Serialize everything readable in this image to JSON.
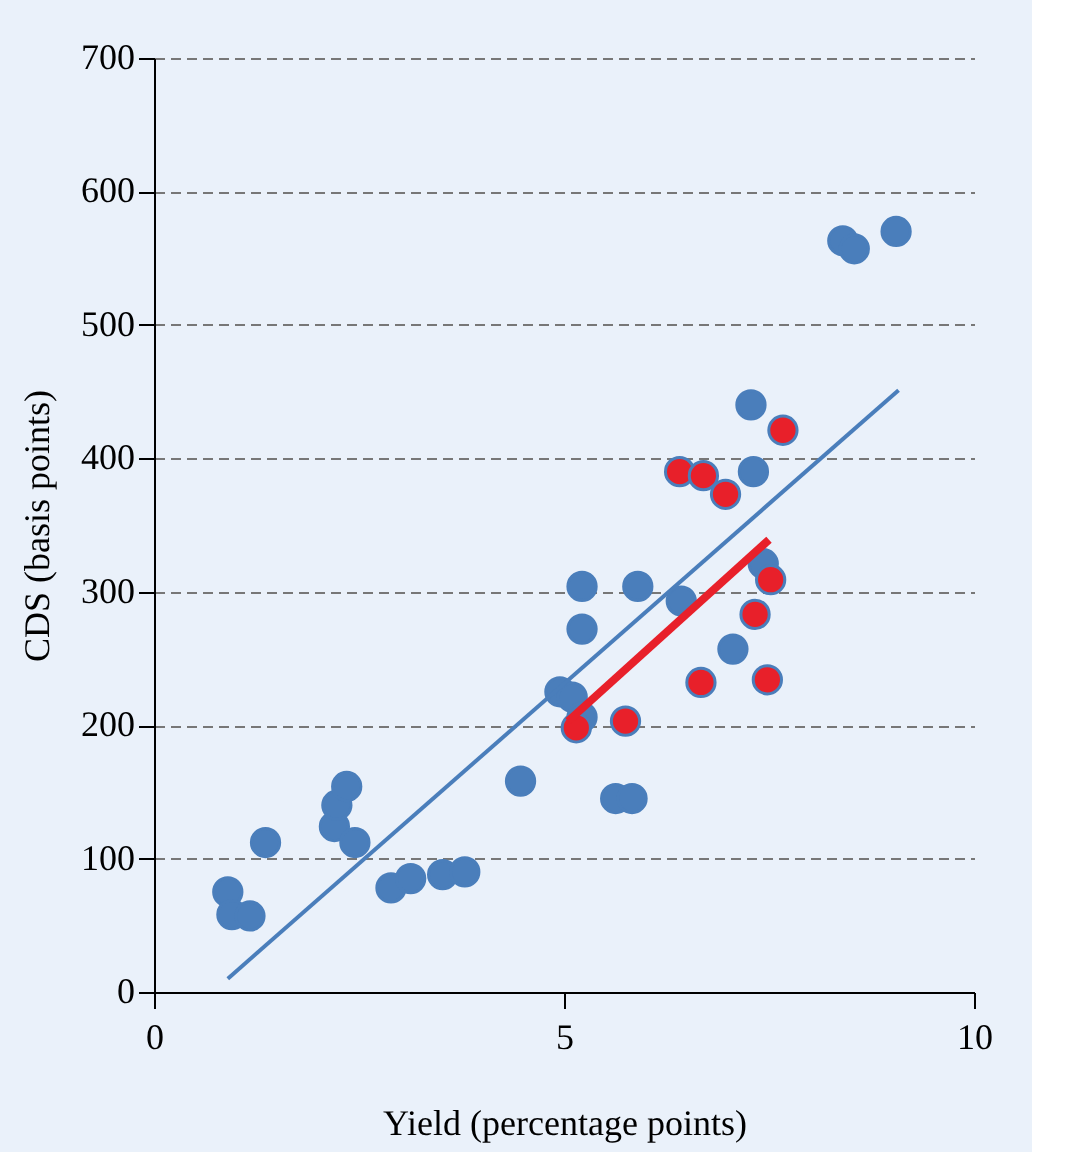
{
  "chart_data": {
    "type": "scatter",
    "xlabel": "Yield (percentage points)",
    "ylabel": "CDS (basis points)",
    "xlim": [
      0,
      10
    ],
    "xticks": [
      0,
      5,
      10
    ],
    "ylim": [
      0,
      700
    ],
    "yticks": [
      0,
      100,
      200,
      300,
      400,
      500,
      600,
      700
    ],
    "grid": "y",
    "series": [
      {
        "color": "#4a7ebb",
        "marker": "circle",
        "x": [
          0.9,
          0.95,
          1.17,
          1.36,
          2.2,
          2.23,
          2.35,
          2.45,
          2.89,
          3.13,
          3.52,
          3.79,
          4.47,
          4.95,
          5.1,
          5.22,
          5.22,
          5.22,
          5.63,
          5.83,
          5.9,
          6.43,
          7.06,
          7.28,
          7.31,
          7.43,
          8.4,
          8.54,
          9.05
        ],
        "values": [
          75,
          58,
          57,
          112,
          124,
          140,
          154,
          112,
          78,
          85,
          88,
          90,
          158,
          225,
          221,
          206,
          272,
          304,
          145,
          145,
          304,
          293,
          257,
          440,
          390,
          321,
          563,
          557,
          570
        ]
      },
      {
        "color": "#e8202a",
        "marker": "circle",
        "x": [
          5.15,
          5.75,
          6.41,
          6.7,
          6.97,
          6.67,
          7.33,
          7.48,
          7.52,
          7.67
        ],
        "values": [
          198,
          203,
          390,
          387,
          373,
          232,
          283,
          234,
          309,
          421
        ]
      },
      {
        "type": "line",
        "color": "#4a7ebb",
        "x": [
          0.9,
          9.08
        ],
        "values": [
          10,
          451
        ]
      },
      {
        "type": "line",
        "color": "#e8202a",
        "x": [
          5.05,
          7.5
        ],
        "values": [
          203,
          339
        ]
      }
    ]
  }
}
